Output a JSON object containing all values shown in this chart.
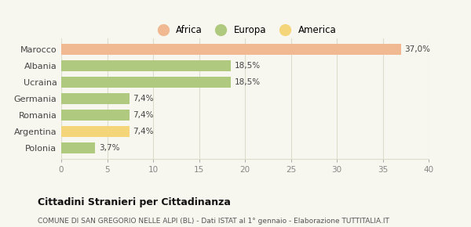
{
  "categories": [
    "Polonia",
    "Argentina",
    "Romania",
    "Germania",
    "Ucraina",
    "Albania",
    "Marocco"
  ],
  "values": [
    3.7,
    7.4,
    7.4,
    7.4,
    18.5,
    18.5,
    37.0
  ],
  "labels": [
    "3,7%",
    "7,4%",
    "7,4%",
    "7,4%",
    "18,5%",
    "18,5%",
    "37,0%"
  ],
  "colors": [
    "#afc97e",
    "#f5d57a",
    "#afc97e",
    "#afc97e",
    "#afc97e",
    "#afc97e",
    "#f0b992"
  ],
  "legend": [
    {
      "label": "Africa",
      "color": "#f0b992"
    },
    {
      "label": "Europa",
      "color": "#afc97e"
    },
    {
      "label": "America",
      "color": "#f5d57a"
    }
  ],
  "xlim": [
    0,
    40
  ],
  "xticks": [
    0,
    5,
    10,
    15,
    20,
    25,
    30,
    35,
    40
  ],
  "title": "Cittadini Stranieri per Cittadinanza",
  "subtitle": "COMUNE DI SAN GREGORIO NELLE ALPI (BL) - Dati ISTAT al 1° gennaio - Elaborazione TUTTITALIA.IT",
  "background_color": "#f7f7ef",
  "grid_color": "#ddddcc",
  "bar_height": 0.65
}
